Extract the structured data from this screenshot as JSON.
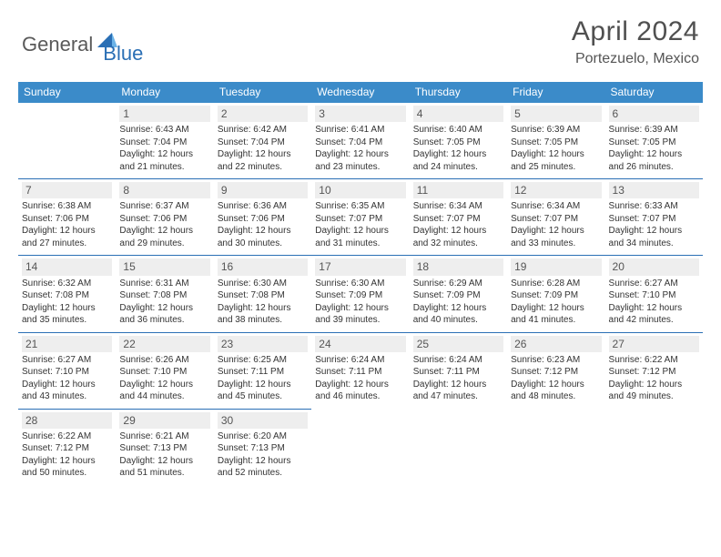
{
  "brand": {
    "part1": "General",
    "part2": "Blue"
  },
  "title": "April 2024",
  "location": "Portezuelo, Mexico",
  "colors": {
    "header_bg": "#3b8bc9",
    "border": "#2a6fb5",
    "daynum_bg": "#eeeeee",
    "text": "#333333",
    "brand_gray": "#5a5a5a",
    "brand_blue": "#2a6fb5"
  },
  "weekdays": [
    "Sunday",
    "Monday",
    "Tuesday",
    "Wednesday",
    "Thursday",
    "Friday",
    "Saturday"
  ],
  "weeks": [
    [
      null,
      {
        "n": "1",
        "sr": "Sunrise: 6:43 AM",
        "ss": "Sunset: 7:04 PM",
        "d1": "Daylight: 12 hours",
        "d2": "and 21 minutes."
      },
      {
        "n": "2",
        "sr": "Sunrise: 6:42 AM",
        "ss": "Sunset: 7:04 PM",
        "d1": "Daylight: 12 hours",
        "d2": "and 22 minutes."
      },
      {
        "n": "3",
        "sr": "Sunrise: 6:41 AM",
        "ss": "Sunset: 7:04 PM",
        "d1": "Daylight: 12 hours",
        "d2": "and 23 minutes."
      },
      {
        "n": "4",
        "sr": "Sunrise: 6:40 AM",
        "ss": "Sunset: 7:05 PM",
        "d1": "Daylight: 12 hours",
        "d2": "and 24 minutes."
      },
      {
        "n": "5",
        "sr": "Sunrise: 6:39 AM",
        "ss": "Sunset: 7:05 PM",
        "d1": "Daylight: 12 hours",
        "d2": "and 25 minutes."
      },
      {
        "n": "6",
        "sr": "Sunrise: 6:39 AM",
        "ss": "Sunset: 7:05 PM",
        "d1": "Daylight: 12 hours",
        "d2": "and 26 minutes."
      }
    ],
    [
      {
        "n": "7",
        "sr": "Sunrise: 6:38 AM",
        "ss": "Sunset: 7:06 PM",
        "d1": "Daylight: 12 hours",
        "d2": "and 27 minutes."
      },
      {
        "n": "8",
        "sr": "Sunrise: 6:37 AM",
        "ss": "Sunset: 7:06 PM",
        "d1": "Daylight: 12 hours",
        "d2": "and 29 minutes."
      },
      {
        "n": "9",
        "sr": "Sunrise: 6:36 AM",
        "ss": "Sunset: 7:06 PM",
        "d1": "Daylight: 12 hours",
        "d2": "and 30 minutes."
      },
      {
        "n": "10",
        "sr": "Sunrise: 6:35 AM",
        "ss": "Sunset: 7:07 PM",
        "d1": "Daylight: 12 hours",
        "d2": "and 31 minutes."
      },
      {
        "n": "11",
        "sr": "Sunrise: 6:34 AM",
        "ss": "Sunset: 7:07 PM",
        "d1": "Daylight: 12 hours",
        "d2": "and 32 minutes."
      },
      {
        "n": "12",
        "sr": "Sunrise: 6:34 AM",
        "ss": "Sunset: 7:07 PM",
        "d1": "Daylight: 12 hours",
        "d2": "and 33 minutes."
      },
      {
        "n": "13",
        "sr": "Sunrise: 6:33 AM",
        "ss": "Sunset: 7:07 PM",
        "d1": "Daylight: 12 hours",
        "d2": "and 34 minutes."
      }
    ],
    [
      {
        "n": "14",
        "sr": "Sunrise: 6:32 AM",
        "ss": "Sunset: 7:08 PM",
        "d1": "Daylight: 12 hours",
        "d2": "and 35 minutes."
      },
      {
        "n": "15",
        "sr": "Sunrise: 6:31 AM",
        "ss": "Sunset: 7:08 PM",
        "d1": "Daylight: 12 hours",
        "d2": "and 36 minutes."
      },
      {
        "n": "16",
        "sr": "Sunrise: 6:30 AM",
        "ss": "Sunset: 7:08 PM",
        "d1": "Daylight: 12 hours",
        "d2": "and 38 minutes."
      },
      {
        "n": "17",
        "sr": "Sunrise: 6:30 AM",
        "ss": "Sunset: 7:09 PM",
        "d1": "Daylight: 12 hours",
        "d2": "and 39 minutes."
      },
      {
        "n": "18",
        "sr": "Sunrise: 6:29 AM",
        "ss": "Sunset: 7:09 PM",
        "d1": "Daylight: 12 hours",
        "d2": "and 40 minutes."
      },
      {
        "n": "19",
        "sr": "Sunrise: 6:28 AM",
        "ss": "Sunset: 7:09 PM",
        "d1": "Daylight: 12 hours",
        "d2": "and 41 minutes."
      },
      {
        "n": "20",
        "sr": "Sunrise: 6:27 AM",
        "ss": "Sunset: 7:10 PM",
        "d1": "Daylight: 12 hours",
        "d2": "and 42 minutes."
      }
    ],
    [
      {
        "n": "21",
        "sr": "Sunrise: 6:27 AM",
        "ss": "Sunset: 7:10 PM",
        "d1": "Daylight: 12 hours",
        "d2": "and 43 minutes."
      },
      {
        "n": "22",
        "sr": "Sunrise: 6:26 AM",
        "ss": "Sunset: 7:10 PM",
        "d1": "Daylight: 12 hours",
        "d2": "and 44 minutes."
      },
      {
        "n": "23",
        "sr": "Sunrise: 6:25 AM",
        "ss": "Sunset: 7:11 PM",
        "d1": "Daylight: 12 hours",
        "d2": "and 45 minutes."
      },
      {
        "n": "24",
        "sr": "Sunrise: 6:24 AM",
        "ss": "Sunset: 7:11 PM",
        "d1": "Daylight: 12 hours",
        "d2": "and 46 minutes."
      },
      {
        "n": "25",
        "sr": "Sunrise: 6:24 AM",
        "ss": "Sunset: 7:11 PM",
        "d1": "Daylight: 12 hours",
        "d2": "and 47 minutes."
      },
      {
        "n": "26",
        "sr": "Sunrise: 6:23 AM",
        "ss": "Sunset: 7:12 PM",
        "d1": "Daylight: 12 hours",
        "d2": "and 48 minutes."
      },
      {
        "n": "27",
        "sr": "Sunrise: 6:22 AM",
        "ss": "Sunset: 7:12 PM",
        "d1": "Daylight: 12 hours",
        "d2": "and 49 minutes."
      }
    ],
    [
      {
        "n": "28",
        "sr": "Sunrise: 6:22 AM",
        "ss": "Sunset: 7:12 PM",
        "d1": "Daylight: 12 hours",
        "d2": "and 50 minutes."
      },
      {
        "n": "29",
        "sr": "Sunrise: 6:21 AM",
        "ss": "Sunset: 7:13 PM",
        "d1": "Daylight: 12 hours",
        "d2": "and 51 minutes."
      },
      {
        "n": "30",
        "sr": "Sunrise: 6:20 AM",
        "ss": "Sunset: 7:13 PM",
        "d1": "Daylight: 12 hours",
        "d2": "and 52 minutes."
      },
      null,
      null,
      null,
      null
    ]
  ]
}
